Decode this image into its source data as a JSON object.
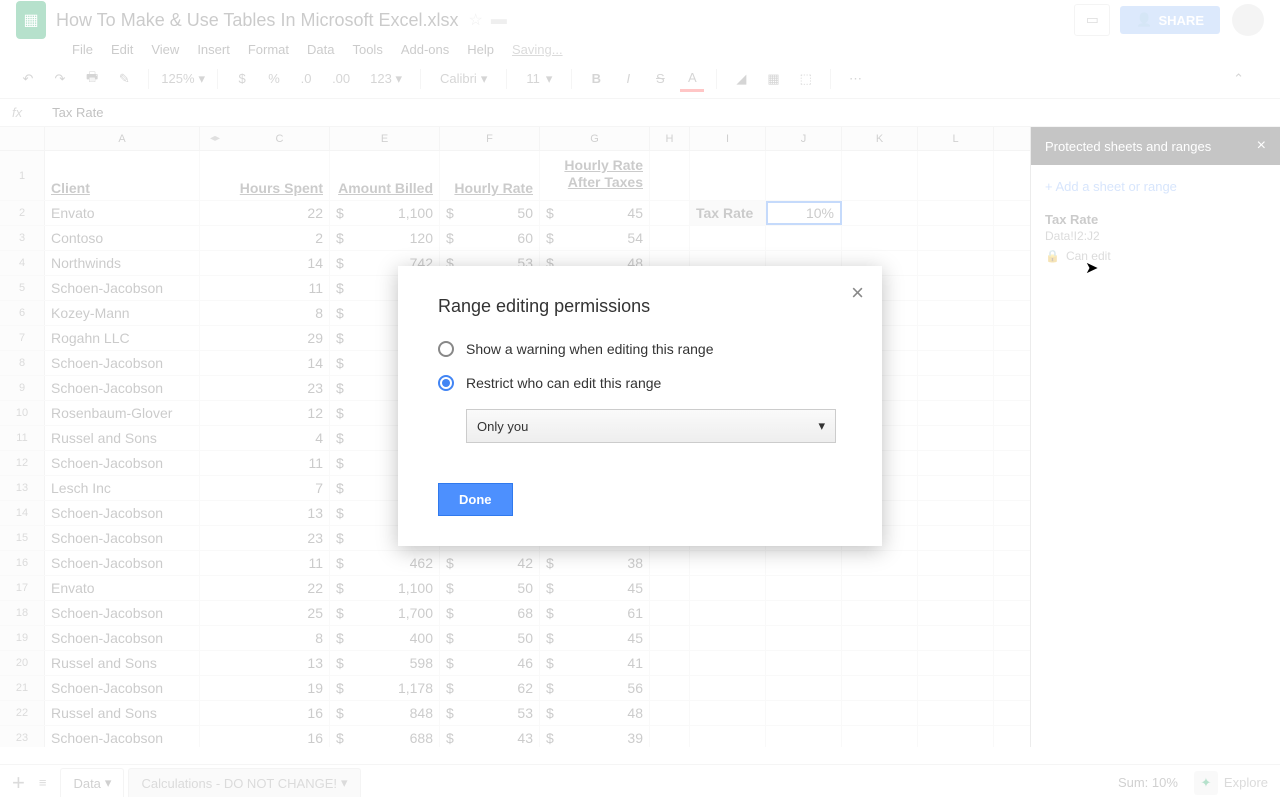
{
  "doc": {
    "title": "How To Make & Use Tables In Microsoft Excel.xlsx",
    "saving": "Saving..."
  },
  "menu": [
    "File",
    "Edit",
    "View",
    "Insert",
    "Format",
    "Data",
    "Tools",
    "Add-ons",
    "Help"
  ],
  "toolbar": {
    "zoom": "125%",
    "font": "Calibri",
    "size": "11"
  },
  "formula": {
    "value": "Tax Rate"
  },
  "columns": [
    "A",
    "C",
    "E",
    "F",
    "G",
    "H",
    "I",
    "J",
    "K",
    "L"
  ],
  "headers": {
    "client": "Client",
    "hours": "Hours Spent",
    "billed": "Amount Billed",
    "rate": "Hourly Rate",
    "after_line1": "Hourly Rate",
    "after_line2": "After Taxes",
    "tax_label": "Tax Rate",
    "tax_value": "10%"
  },
  "rows": [
    {
      "n": 2,
      "client": "Envato",
      "hours": 22,
      "billed": "1,100",
      "rate": 50,
      "after": 45
    },
    {
      "n": 3,
      "client": "Contoso",
      "hours": 2,
      "billed": "120",
      "rate": 60,
      "after": 54
    },
    {
      "n": 4,
      "client": "Northwinds",
      "hours": 14,
      "billed": "742",
      "rate": 53,
      "after": 48
    },
    {
      "n": 5,
      "client": "Schoen-Jacobson",
      "hours": 11,
      "billed": "",
      "rate": "",
      "after": ""
    },
    {
      "n": 6,
      "client": "Kozey-Mann",
      "hours": 8,
      "billed": "",
      "rate": "",
      "after": ""
    },
    {
      "n": 7,
      "client": "Rogahn LLC",
      "hours": 29,
      "billed": "1",
      "rate": "",
      "after": ""
    },
    {
      "n": 8,
      "client": "Schoen-Jacobson",
      "hours": 14,
      "billed": "",
      "rate": "",
      "after": ""
    },
    {
      "n": 9,
      "client": "Schoen-Jacobson",
      "hours": 23,
      "billed": "",
      "rate": "",
      "after": ""
    },
    {
      "n": 10,
      "client": "Rosenbaum-Glover",
      "hours": 12,
      "billed": "",
      "rate": "",
      "after": ""
    },
    {
      "n": 11,
      "client": "Russel and Sons",
      "hours": 4,
      "billed": "",
      "rate": "",
      "after": ""
    },
    {
      "n": 12,
      "client": "Schoen-Jacobson",
      "hours": 11,
      "billed": "",
      "rate": "",
      "after": ""
    },
    {
      "n": 13,
      "client": "Lesch Inc",
      "hours": 7,
      "billed": "",
      "rate": "",
      "after": ""
    },
    {
      "n": 14,
      "client": "Schoen-Jacobson",
      "hours": 13,
      "billed": "",
      "rate": "",
      "after": ""
    },
    {
      "n": 15,
      "client": "Schoen-Jacobson",
      "hours": 23,
      "billed": "851",
      "rate": 37,
      "after": 33
    },
    {
      "n": 16,
      "client": "Schoen-Jacobson",
      "hours": 11,
      "billed": "462",
      "rate": 42,
      "after": 38
    },
    {
      "n": 17,
      "client": "Envato",
      "hours": 22,
      "billed": "1,100",
      "rate": 50,
      "after": 45
    },
    {
      "n": 18,
      "client": "Schoen-Jacobson",
      "hours": 25,
      "billed": "1,700",
      "rate": 68,
      "after": 61
    },
    {
      "n": 19,
      "client": "Schoen-Jacobson",
      "hours": 8,
      "billed": "400",
      "rate": 50,
      "after": 45
    },
    {
      "n": 20,
      "client": "Russel and Sons",
      "hours": 13,
      "billed": "598",
      "rate": 46,
      "after": 41
    },
    {
      "n": 21,
      "client": "Schoen-Jacobson",
      "hours": 19,
      "billed": "1,178",
      "rate": 62,
      "after": 56
    },
    {
      "n": 22,
      "client": "Russel and Sons",
      "hours": 16,
      "billed": "848",
      "rate": 53,
      "after": 48
    },
    {
      "n": 23,
      "client": "Schoen-Jacobson",
      "hours": 16,
      "billed": "688",
      "rate": 43,
      "after": 39
    }
  ],
  "sidebar": {
    "title": "Protected sheets and ranges",
    "add": "+ Add a sheet or range",
    "range_name": "Tax Rate",
    "range_ref": "Data!I2:J2",
    "can_edit": "Can edit"
  },
  "bottom": {
    "tab1": "Data",
    "tab2": "Calculations - DO NOT CHANGE!",
    "sum": "Sum: 10%",
    "explore": "Explore"
  },
  "modal": {
    "title": "Range editing permissions",
    "opt_warn": "Show a warning when editing this range",
    "opt_restrict": "Restrict who can edit this range",
    "select": "Only you",
    "done": "Done"
  },
  "share_label": "SHARE"
}
